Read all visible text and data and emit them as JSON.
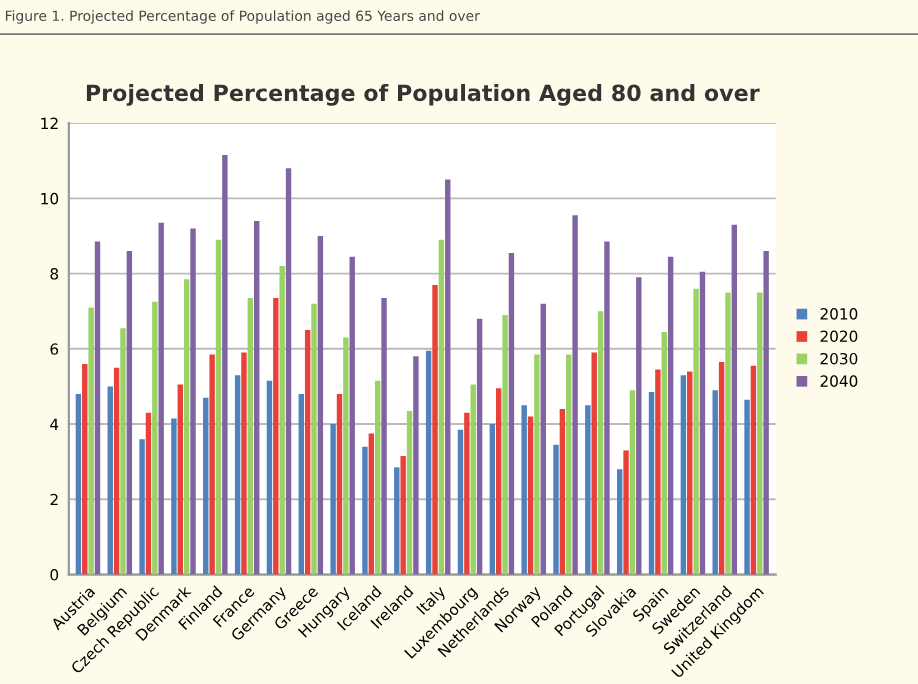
{
  "chart_data": {
    "type": "bar",
    "title": "Projected Percentage of Population Aged 80 and over",
    "annotations": [
      "Figure 1. Projected Percentage of Population aged 65 Years and over"
    ],
    "categories": [
      "Austria",
      "Belgium",
      "Czech Republic",
      "Denmark",
      "Finland",
      "France",
      "Germany",
      "Greece",
      "Hungary",
      "Iceland",
      "Ireland",
      "Italy",
      "Luxembourg",
      "Netherlands",
      "Norway",
      "Poland",
      "Portugal",
      "Slovakia",
      "Spain",
      "Sweden",
      "Switzerland",
      "United Kingdom"
    ],
    "series": [
      {
        "name": "2010",
        "color": "#4f81bd",
        "values": [
          4.8,
          5.0,
          3.6,
          4.15,
          4.7,
          5.3,
          5.15,
          4.8,
          4.0,
          3.4,
          2.85,
          5.95,
          3.85,
          4.0,
          4.5,
          3.45,
          4.5,
          2.8,
          4.85,
          5.3,
          4.9,
          4.65
        ]
      },
      {
        "name": "2020",
        "color": "#e8413a",
        "values": [
          5.6,
          5.5,
          4.3,
          5.05,
          5.85,
          5.9,
          7.35,
          6.5,
          4.8,
          3.75,
          3.15,
          7.7,
          4.3,
          4.95,
          4.2,
          4.4,
          5.9,
          3.3,
          5.45,
          5.4,
          5.65,
          5.55
        ]
      },
      {
        "name": "2030",
        "color": "#9bd264",
        "values": [
          7.1,
          6.55,
          7.25,
          7.85,
          8.9,
          7.35,
          8.2,
          7.2,
          6.3,
          5.15,
          4.35,
          8.9,
          5.05,
          6.9,
          5.85,
          5.85,
          7.0,
          4.9,
          6.45,
          7.6,
          7.5,
          7.5
        ]
      },
      {
        "name": "2040",
        "color": "#8064a2",
        "values": [
          8.85,
          8.6,
          9.35,
          9.2,
          11.15,
          9.4,
          10.8,
          9.0,
          8.45,
          7.35,
          5.8,
          10.5,
          6.8,
          8.55,
          7.2,
          9.55,
          8.85,
          7.9,
          8.45,
          8.05,
          9.3,
          8.6
        ]
      }
    ],
    "ylim": [
      0,
      12
    ],
    "yticks": [
      0,
      2,
      4,
      6,
      8,
      10,
      12
    ],
    "grid": "y",
    "legend": "right"
  }
}
